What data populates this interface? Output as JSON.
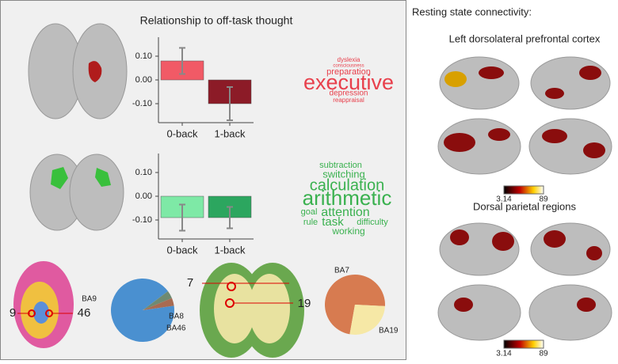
{
  "panel_title": "Relationship to off-task thought",
  "chart_data": [
    {
      "type": "bar",
      "categories": [
        "0-back",
        "1-back"
      ],
      "values": [
        0.08,
        -0.1
      ],
      "errors": [
        0.055,
        0.07
      ],
      "colors": [
        "#f15a66",
        "#8c1b27"
      ],
      "ylim": [
        -0.18,
        0.18
      ],
      "yticks": [
        {
          "value": 0.1,
          "label": "0.10"
        },
        {
          "value": 0,
          "label": "0.00"
        },
        {
          "value": -0.1,
          "label": "-0.10"
        }
      ]
    },
    {
      "type": "bar",
      "categories": [
        "0-back",
        "1-back"
      ],
      "values": [
        -0.09,
        -0.09
      ],
      "errors": [
        0.055,
        0.045
      ],
      "colors": [
        "#7ee9a6",
        "#2ca65f"
      ],
      "ylim": [
        -0.18,
        0.18
      ],
      "yticks": [
        {
          "value": 0.1,
          "label": "0.10"
        },
        {
          "value": 0,
          "label": "0.00"
        },
        {
          "value": -0.1,
          "label": "-0.10"
        }
      ]
    },
    {
      "type": "pie",
      "labels": [
        "BA9",
        "BA8",
        "BA46"
      ],
      "values": [
        92,
        4,
        4
      ],
      "colors": [
        "#4a90d0",
        "#6f8a72",
        "#a86b52"
      ]
    },
    {
      "type": "pie",
      "labels": [
        "BA7",
        "BA19"
      ],
      "values": [
        73,
        27
      ],
      "colors": [
        "#d77b50",
        "#f6e8a6"
      ]
    }
  ],
  "word_clouds": [
    {
      "color": "#e8404c",
      "words": [
        "dyslexia",
        "consciousness",
        "preparation",
        "executive",
        "depression",
        "reappraisal"
      ]
    },
    {
      "color": "#3ab14f",
      "words": [
        "subtraction",
        "switching",
        "calculation",
        "arithmetic",
        "goal",
        "attention",
        "rule",
        "task",
        "difficulty",
        "working"
      ]
    }
  ],
  "region_labels": [
    "9",
    "46",
    "7",
    "19"
  ],
  "right_title": "Resting state connectivity:",
  "maps": [
    {
      "title": "Left dorsolateral prefrontal cortex",
      "colorbar_min": "3.14",
      "colorbar_max": "89"
    },
    {
      "title": "Dorsal parietal regions",
      "colorbar_min": "3.14",
      "colorbar_max": "89"
    }
  ]
}
